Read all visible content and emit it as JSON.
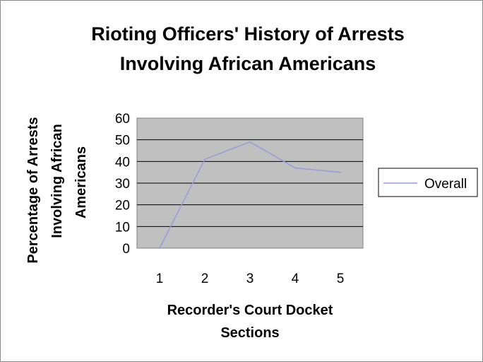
{
  "chart_data": {
    "type": "line",
    "title_lines": [
      "Rioting Officers' History of Arrests",
      "Involving African Americans"
    ],
    "xlabel_lines": [
      "Recorder's Court Docket",
      "Sections"
    ],
    "ylabel_lines": [
      "Percentage of Arrests",
      "Involving African",
      "Americans"
    ],
    "categories": [
      "1",
      "2",
      "3",
      "4",
      "5"
    ],
    "series": [
      {
        "name": "Overall",
        "values": [
          0,
          41,
          49,
          37,
          35
        ],
        "color": "#9a9ad8"
      }
    ],
    "ylim": [
      0,
      60
    ],
    "yticks": [
      "0",
      "10",
      "20",
      "30",
      "40",
      "50",
      "60"
    ],
    "grid": true,
    "plot_background": "#c0c0c0",
    "legend_position": "right"
  }
}
